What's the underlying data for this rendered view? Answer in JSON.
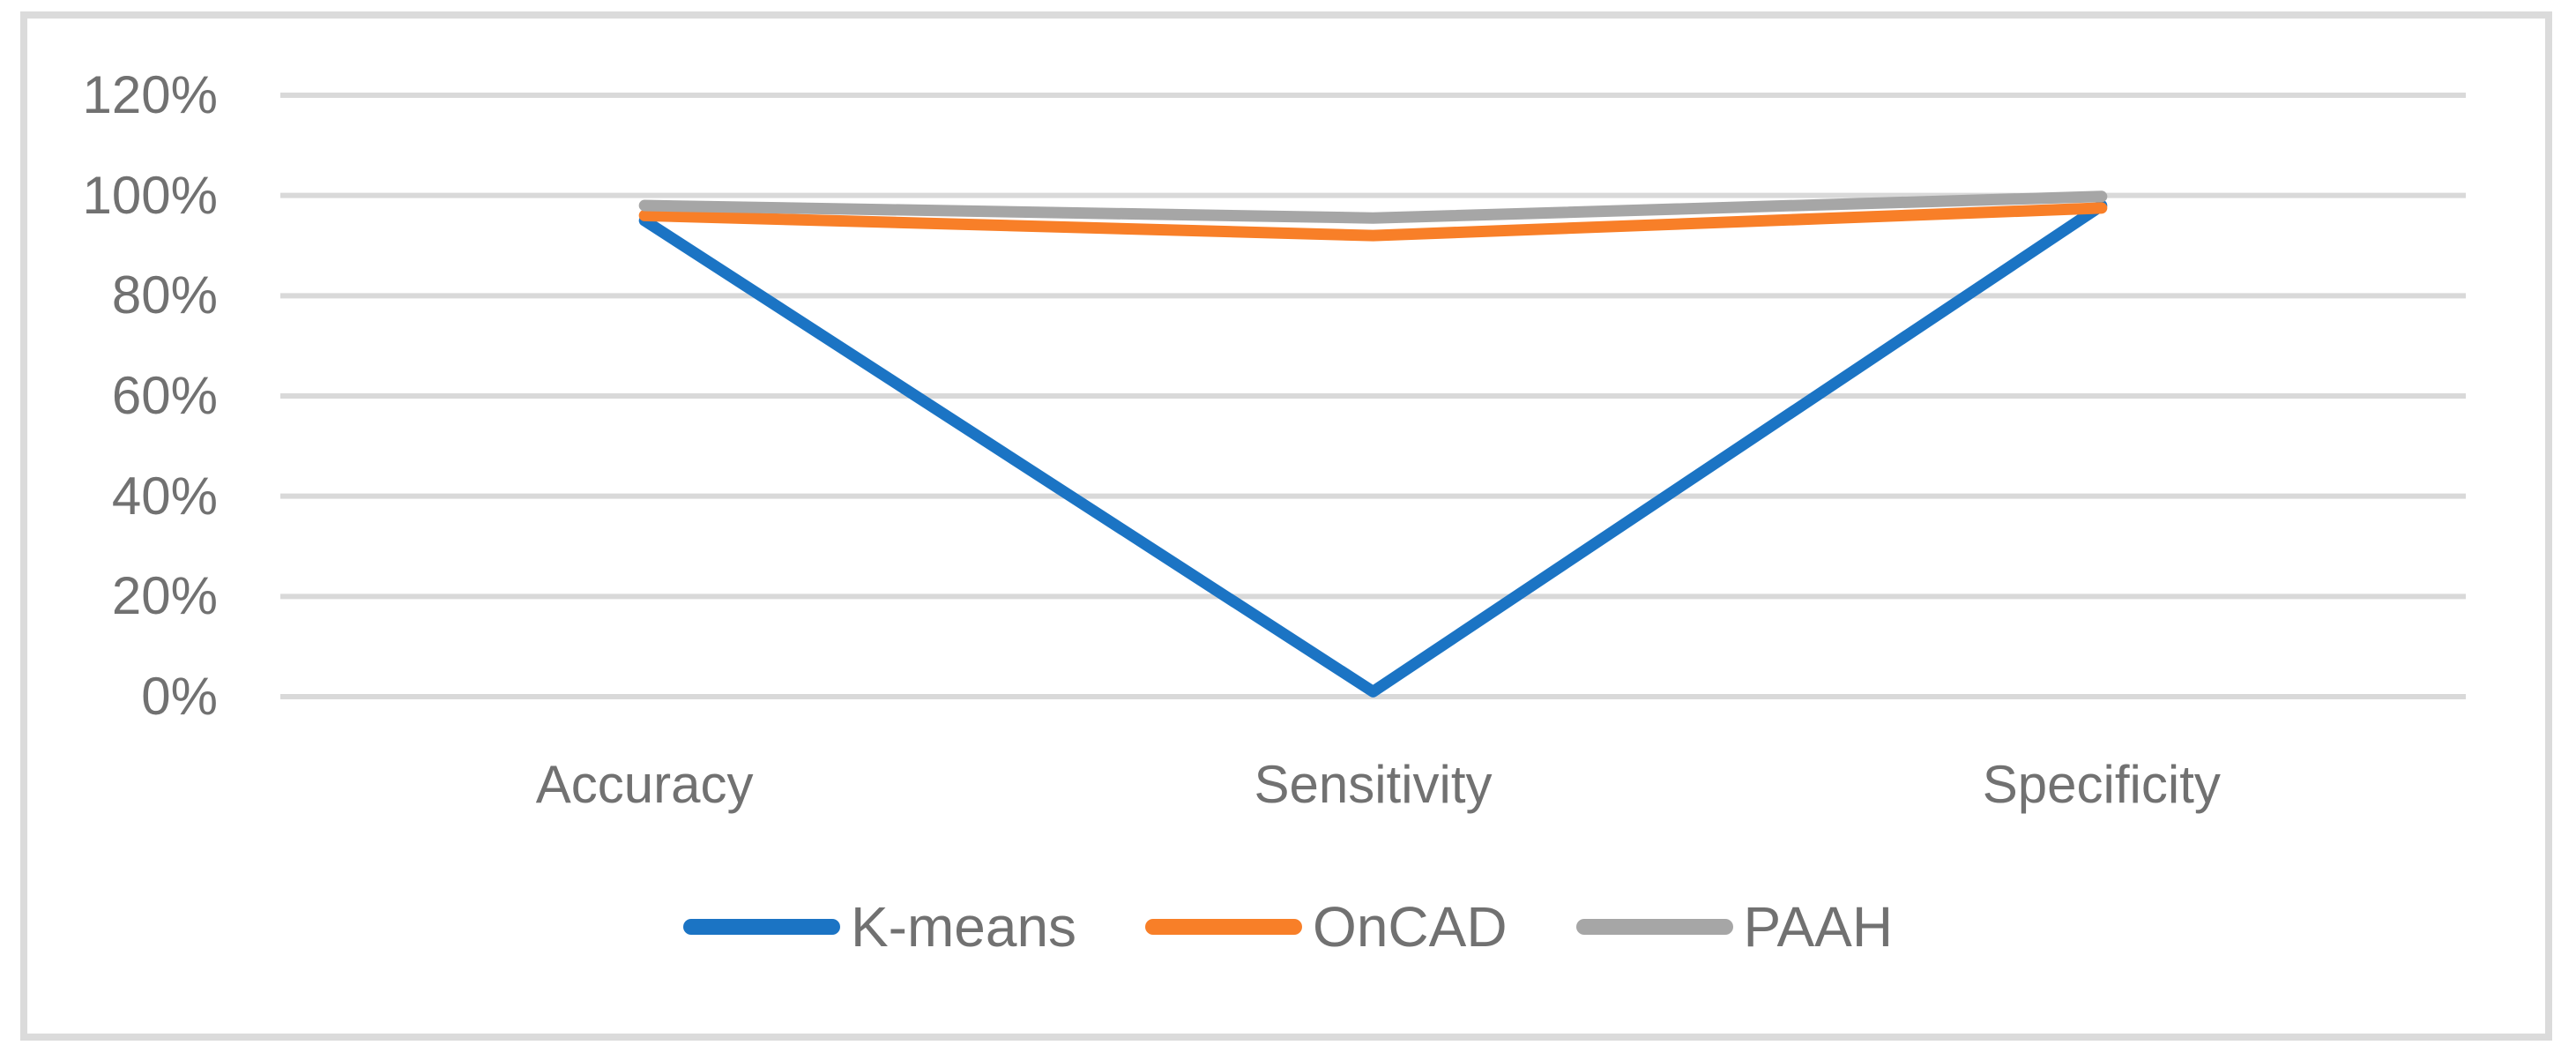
{
  "figure": {
    "background_color": "#FFFFFF",
    "border_color": "#DBDBDB"
  },
  "chart_data": {
    "type": "line",
    "title": "",
    "xlabel": "",
    "ylabel": "",
    "categories": [
      "Accuracy",
      "Sensitivity",
      "Specificity"
    ],
    "series": [
      {
        "name": "K-means",
        "color": "#1B74C4",
        "values": [
          0.95,
          0.01,
          0.98
        ]
      },
      {
        "name": "OnCAD",
        "color": "#F87F28",
        "values": [
          0.96,
          0.92,
          0.975
        ]
      },
      {
        "name": "PAAH",
        "color": "#A6A6A6",
        "values": [
          0.98,
          0.955,
          0.998
        ]
      }
    ],
    "ylim": [
      0,
      1.2
    ],
    "y_axis": {
      "ticks": [
        {
          "label": "0%",
          "value": 0.0
        },
        {
          "label": "20%",
          "value": 0.2
        },
        {
          "label": "40%",
          "value": 0.4
        },
        {
          "label": "60%",
          "value": 0.6
        },
        {
          "label": "80%",
          "value": 0.8
        },
        {
          "label": "100%",
          "value": 1.0
        },
        {
          "label": "120%",
          "value": 1.2
        }
      ]
    },
    "grid": true,
    "gridline_color": "#D9D9D9",
    "tick_label_color": "#717171",
    "legend_position": "bottom"
  }
}
